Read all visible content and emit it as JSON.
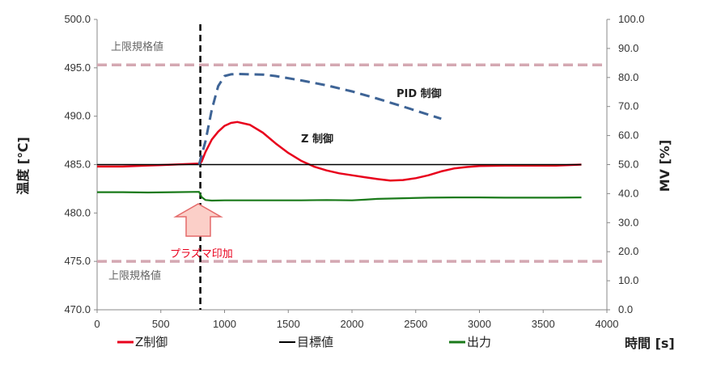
{
  "chart_data": {
    "type": "line",
    "xlabel": "時間 [s]",
    "ylabel_left": "温度 [℃]",
    "ylabel_right": "MV [%]",
    "xlim": [
      0,
      4000
    ],
    "ylim_left": [
      470,
      500
    ],
    "ylim_right": [
      0,
      100
    ],
    "x_ticks": [
      "0",
      "500",
      "1000",
      "1500",
      "2000",
      "2500",
      "3000",
      "3500",
      "4000"
    ],
    "y_left_ticks": [
      "470.0",
      "475.0",
      "480.0",
      "485.0",
      "490.0",
      "495.0",
      "500.0"
    ],
    "y_right_ticks": [
      "0.0",
      "10.0",
      "20.0",
      "30.0",
      "40.0",
      "50.0",
      "60.0",
      "70.0",
      "80.0",
      "90.0",
      "100.0"
    ],
    "grid": false,
    "legend_position": "bottom",
    "colors": {
      "z_control": "#e8001c",
      "target": "#000000",
      "output": "#1a7a1a",
      "pid": "#3e6496",
      "limit": "#d4a8b2",
      "plasma": "#f07070"
    },
    "series": [
      {
        "name": "Z制御",
        "axis": "left",
        "x": [
          0,
          200,
          380,
          500,
          700,
          800,
          820,
          850,
          900,
          950,
          1000,
          1050,
          1100,
          1200,
          1300,
          1400,
          1500,
          1600,
          1700,
          1800,
          1900,
          2000,
          2100,
          2200,
          2300,
          2400,
          2500,
          2600,
          2700,
          2800,
          2900,
          3000,
          3200,
          3400,
          3600,
          3800
        ],
        "y": [
          484.8,
          484.8,
          484.9,
          484.95,
          485.05,
          485.1,
          485.3,
          486.3,
          487.6,
          488.4,
          489.0,
          489.3,
          489.4,
          489.1,
          488.3,
          487.2,
          486.2,
          485.4,
          484.8,
          484.4,
          484.1,
          483.9,
          483.7,
          483.5,
          483.35,
          483.4,
          483.6,
          483.9,
          484.3,
          484.6,
          484.75,
          484.85,
          484.9,
          484.9,
          484.9,
          485.0
        ]
      },
      {
        "name": "目標値",
        "axis": "left",
        "x": [
          0,
          3800
        ],
        "y": [
          485,
          485
        ]
      },
      {
        "name": "出力",
        "axis": "right",
        "x": [
          0,
          200,
          400,
          600,
          800,
          820,
          850,
          900,
          1000,
          1200,
          1400,
          1600,
          1800,
          2000,
          2100,
          2200,
          2400,
          2600,
          2800,
          3000,
          3200,
          3400,
          3600,
          3800
        ],
        "y": [
          40.5,
          40.5,
          40.4,
          40.5,
          40.6,
          38.8,
          37.8,
          37.6,
          37.7,
          37.7,
          37.7,
          37.7,
          37.8,
          37.7,
          37.9,
          38.2,
          38.4,
          38.6,
          38.7,
          38.7,
          38.6,
          38.6,
          38.6,
          38.7
        ]
      },
      {
        "axis": "right",
        "dashed": true,
        "x": [
          800,
          850,
          900,
          950,
          1000,
          1050,
          1100,
          1200,
          1300,
          1400,
          1600,
          1800,
          2000,
          2200,
          2400,
          2600,
          2700
        ],
        "y": [
          50.0,
          58.0,
          69.0,
          77.0,
          80.5,
          81.1,
          81.2,
          81.1,
          81.0,
          80.5,
          79.0,
          77.3,
          75.2,
          72.7,
          70.0,
          67.2,
          65.8
        ]
      }
    ],
    "reference_lines": [
      {
        "label": "上限規格値",
        "y": 495.3
      },
      {
        "label": "上限規格値",
        "y": 475.0
      },
      {
        "x": 810
      }
    ],
    "annotations": {
      "pid": "PID 制御",
      "z": "Z 制御",
      "plasma": "プラズマ印加"
    }
  }
}
